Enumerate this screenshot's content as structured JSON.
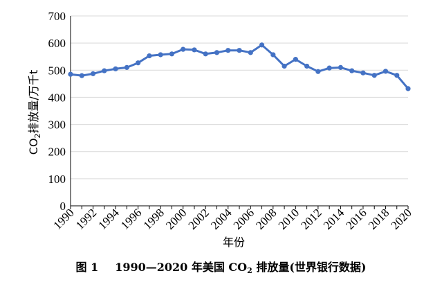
{
  "chart_data": {
    "type": "line",
    "x": [
      1990,
      1991,
      1992,
      1993,
      1994,
      1995,
      1996,
      1997,
      1998,
      1999,
      2000,
      2001,
      2002,
      2003,
      2004,
      2005,
      2006,
      2007,
      2008,
      2009,
      2010,
      2011,
      2012,
      2013,
      2014,
      2015,
      2016,
      2017,
      2018,
      2019,
      2020
    ],
    "series": [
      {
        "values": [
          485,
          480,
          487,
          498,
          505,
          510,
          527,
          553,
          557,
          560,
          577,
          575,
          560,
          565,
          573,
          573,
          565,
          593,
          557,
          515,
          540,
          515,
          495,
          508,
          510,
          498,
          490,
          481,
          496,
          481,
          432
        ],
        "color": "#4472c4"
      }
    ],
    "xticks": [
      "1990",
      "1992",
      "1994",
      "1996",
      "1998",
      "2000",
      "2002",
      "2004",
      "2006",
      "2008",
      "2010",
      "2012",
      "2014",
      "2016",
      "2018",
      "2020"
    ],
    "yticks": [
      0,
      100,
      200,
      300,
      400,
      500,
      600,
      700
    ],
    "ylim": [
      0,
      700
    ],
    "xlim": [
      1990,
      2020
    ],
    "xlabel": "年份",
    "ylabel": "CO₂排放量/万千t",
    "grid": "horizontal",
    "legend": "none"
  },
  "caption": {
    "number": "图 1",
    "text_before": "1990—2020 年美国 CO",
    "subscript": "2",
    "text_after": " 排放量(世界银行数据)"
  }
}
